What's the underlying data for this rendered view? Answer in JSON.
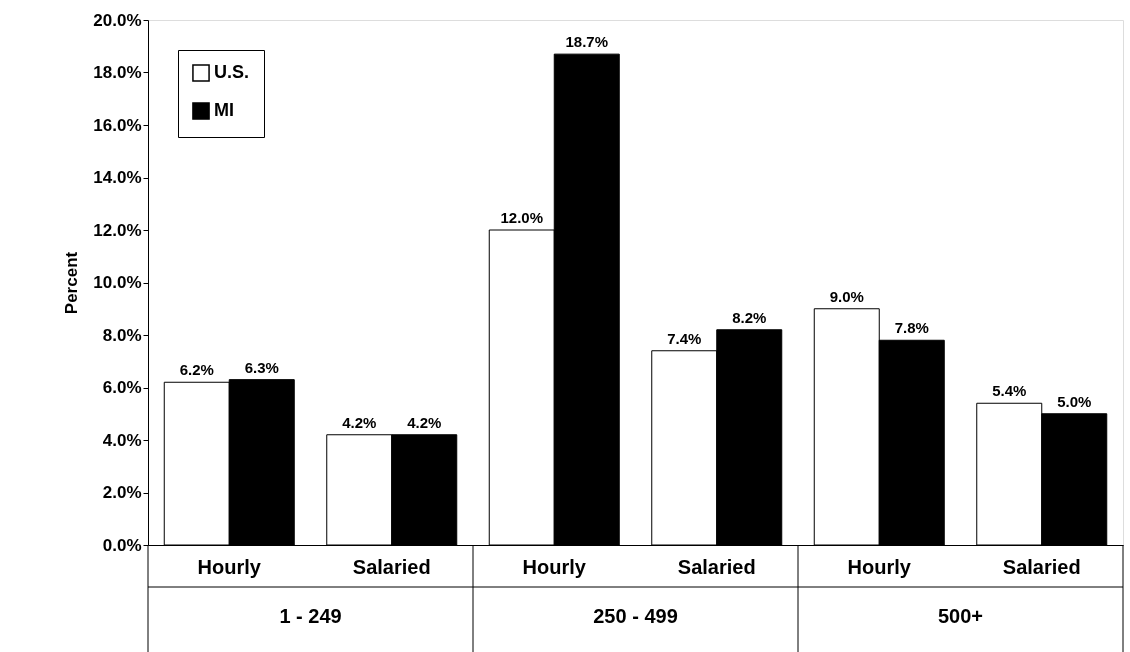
{
  "chart_data": {
    "type": "bar",
    "ylabel": "Percent",
    "categories": [
      "Hourly",
      "Salaried",
      "Hourly",
      "Salaried",
      "Hourly",
      "Salaried"
    ],
    "series": [
      {
        "name": "U.S.",
        "color": "#ffffff",
        "values": [
          6.2,
          4.2,
          12.0,
          7.4,
          9.0,
          5.4
        ],
        "value_labels": [
          "6.2%",
          "4.2%",
          "12.0%",
          "7.4%",
          "9.0%",
          "5.4%"
        ]
      },
      {
        "name": "MI",
        "color": "#000000",
        "values": [
          6.3,
          4.2,
          18.7,
          8.2,
          7.8,
          5.0
        ],
        "value_labels": [
          "6.3%",
          "4.2%",
          "18.7%",
          "8.2%",
          "7.8%",
          "5.0%"
        ]
      }
    ],
    "annotations": [
      "1 - 249",
      "250 - 499",
      "500+"
    ],
    "ylim": [
      0,
      20
    ],
    "yticks": [
      {
        "value": 0,
        "label": "0.0%"
      },
      {
        "value": 2,
        "label": "2.0%"
      },
      {
        "value": 4,
        "label": "4.0%"
      },
      {
        "value": 6,
        "label": "6.0%"
      },
      {
        "value": 8,
        "label": "8.0%"
      },
      {
        "value": 10,
        "label": "10.0%"
      },
      {
        "value": 12,
        "label": "12.0%"
      },
      {
        "value": 14,
        "label": "14.0%"
      },
      {
        "value": 16,
        "label": "16.0%"
      },
      {
        "value": 18,
        "label": "18.0%"
      },
      {
        "value": 20,
        "label": "20.0%"
      }
    ],
    "grid": false,
    "legend": "top left"
  }
}
